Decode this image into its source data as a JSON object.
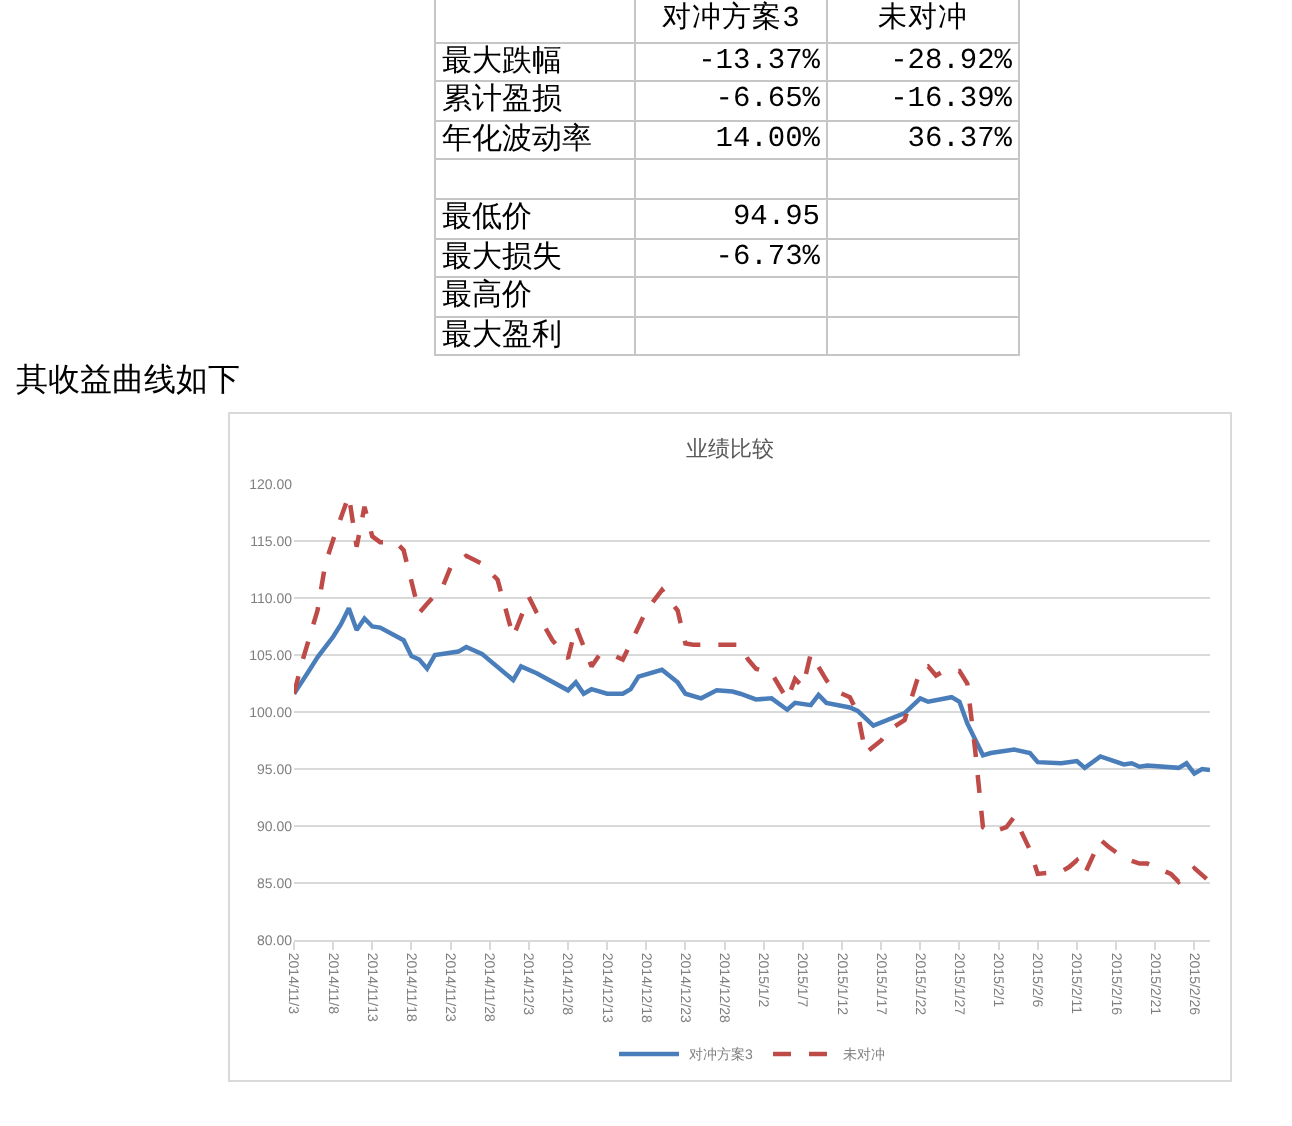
{
  "chart_data": [
    {
      "type": "other",
      "categories": [
        "最大跌幅",
        "累计盈损",
        "年化波动率",
        null,
        "最低价",
        "最大损失",
        "最高价",
        "最大盈利"
      ],
      "series": [
        {
          "name": "对冲方案3",
          "values": [
            -13.37,
            -6.65,
            14.0,
            null,
            94.95,
            -6.73,
            null,
            null
          ],
          "value_labels": [
            "-13.37%",
            "-6.65%",
            "14.00%",
            null,
            "94.95",
            "-6.73%",
            null,
            null
          ]
        },
        {
          "name": "未对冲",
          "values": [
            -28.92,
            -16.39,
            36.37,
            null,
            null,
            null,
            null,
            null
          ],
          "value_labels": [
            "-28.92%",
            "-16.39%",
            "36.37%",
            null,
            null,
            null,
            null,
            null
          ]
        }
      ]
    },
    {
      "type": "line",
      "title": "业绩比较",
      "annotations": [
        "其收益曲线如下"
      ],
      "series": [
        {
          "name": "对冲方案3",
          "color": "#4a7ebb",
          "line_style": "solid",
          "x": [
            "2014-11-03",
            "2014-11-05",
            "2014-11-06",
            "2014-11-08",
            "2014-11-09",
            "2014-11-10",
            "2014-11-11",
            "2014-11-12",
            "2014-11-13",
            "2014-11-14",
            "2014-11-17",
            "2014-11-18",
            "2014-11-19",
            "2014-11-20",
            "2014-11-21",
            "2014-11-24",
            "2014-11-25",
            "2014-11-27",
            "2014-12-01",
            "2014-12-02",
            "2014-12-04",
            "2014-12-08",
            "2014-12-09",
            "2014-12-10",
            "2014-12-11",
            "2014-12-13",
            "2014-12-15",
            "2014-12-16",
            "2014-12-17",
            "2014-12-20",
            "2014-12-22",
            "2014-12-23",
            "2014-12-25",
            "2014-12-27",
            "2014-12-29",
            "2014-12-30",
            "2015-01-01",
            "2015-01-03",
            "2015-01-05",
            "2015-01-06",
            "2015-01-08",
            "2015-01-09",
            "2015-01-10",
            "2015-01-13",
            "2015-01-14",
            "2015-01-16",
            "2015-01-20",
            "2015-01-22",
            "2015-01-23",
            "2015-01-26",
            "2015-01-27",
            "2015-01-28",
            "2015-01-30",
            "2015-01-31",
            "2015-02-03",
            "2015-02-05",
            "2015-02-06",
            "2015-02-09",
            "2015-02-11",
            "2015-02-12",
            "2015-02-14",
            "2015-02-17",
            "2015-02-18",
            "2015-02-19",
            "2015-02-20",
            "2015-02-24",
            "2015-02-25",
            "2015-02-26",
            "2015-02-27",
            "2015-02-28"
          ],
          "values": [
            101.6,
            103.7,
            104.8,
            106.6,
            107.7,
            109.1,
            107.2,
            108.2,
            107.5,
            107.4,
            106.3,
            104.9,
            104.6,
            103.8,
            105.0,
            105.3,
            105.7,
            105.1,
            102.8,
            104.0,
            103.4,
            101.9,
            102.6,
            101.6,
            102.0,
            101.6,
            101.6,
            102.0,
            103.1,
            103.7,
            102.6,
            101.6,
            101.2,
            101.9,
            101.8,
            101.6,
            101.1,
            101.2,
            100.2,
            100.8,
            100.6,
            101.5,
            100.8,
            100.4,
            100.1,
            98.8,
            99.9,
            101.2,
            100.9,
            101.3,
            100.9,
            99.0,
            96.2,
            96.4,
            96.7,
            96.4,
            95.6,
            95.5,
            95.7,
            95.1,
            96.1,
            95.4,
            95.5,
            95.2,
            95.3,
            95.1,
            95.5,
            94.6,
            95.0,
            94.9
          ]
        },
        {
          "name": "未对冲",
          "color": "#be4b48",
          "line_style": "dashed",
          "x": [
            "2014-11-03",
            "2014-11-04",
            "2014-11-06",
            "2014-11-07",
            "2014-11-08",
            "2014-11-10",
            "2014-11-11",
            "2014-11-12",
            "2014-11-13",
            "2014-11-14",
            "2014-11-16",
            "2014-11-17",
            "2014-11-19",
            "2014-11-20",
            "2014-11-22",
            "2014-11-23",
            "2014-11-25",
            "2014-11-27",
            "2014-11-29",
            "2014-12-01",
            "2014-12-03",
            "2014-12-04",
            "2014-12-06",
            "2014-12-08",
            "2014-12-09",
            "2014-12-11",
            "2014-12-12",
            "2014-12-14",
            "2014-12-15",
            "2014-12-18",
            "2014-12-20",
            "2014-12-22",
            "2014-12-23",
            "2014-12-24",
            "2014-12-30",
            "2014-12-31",
            "2015-01-01",
            "2015-01-03",
            "2015-01-05",
            "2015-01-06",
            "2015-01-07",
            "2015-01-08",
            "2015-01-10",
            "2015-01-11",
            "2015-01-13",
            "2015-01-14",
            "2015-01-15",
            "2015-01-17",
            "2015-01-18",
            "2015-01-20",
            "2015-01-22",
            "2015-01-23",
            "2015-01-24",
            "2015-01-25",
            "2015-01-27",
            "2015-01-28",
            "2015-01-29",
            "2015-01-30",
            "2015-01-31",
            "2015-02-02",
            "2015-02-03",
            "2015-02-05",
            "2015-02-06",
            "2015-02-09",
            "2015-02-10",
            "2015-02-11",
            "2015-02-12",
            "2015-02-14",
            "2015-02-15",
            "2015-02-17",
            "2015-02-19",
            "2015-02-20",
            "2015-02-23",
            "2015-02-24",
            "2015-02-26",
            "2015-02-28"
          ],
          "values": [
            101.6,
            104.3,
            108.9,
            113.0,
            115.1,
            119.0,
            114.5,
            118.0,
            115.4,
            114.9,
            114.9,
            114.2,
            108.7,
            109.5,
            111.0,
            112.7,
            113.7,
            113.0,
            111.6,
            106.6,
            110.1,
            108.7,
            106.3,
            104.7,
            107.5,
            104.0,
            105.0,
            104.9,
            104.6,
            108.9,
            110.7,
            108.9,
            106.0,
            105.9,
            105.9,
            104.6,
            103.8,
            103.4,
            101.1,
            102.9,
            102.2,
            105.1,
            102.8,
            101.9,
            101.3,
            99.9,
            96.4,
            97.5,
            98.4,
            99.3,
            103.7,
            104.0,
            103.2,
            103.6,
            103.6,
            102.5,
            96.7,
            89.9,
            89.4,
            89.9,
            90.8,
            87.9,
            85.8,
            86.0,
            86.4,
            87.0,
            85.8,
            88.8,
            88.2,
            87.2,
            86.7,
            86.7,
            85.8,
            85.1,
            86.3,
            85.1
          ]
        }
      ],
      "xlim": [
        "2014-11-03",
        "2015-02-28"
      ],
      "xticks": [
        {
          "value": "2014-11-03",
          "label": "2014/11/3"
        },
        {
          "value": "2014-11-08",
          "label": "2014/11/8"
        },
        {
          "value": "2014-11-13",
          "label": "2014/11/13"
        },
        {
          "value": "2014-11-18",
          "label": "2014/11/18"
        },
        {
          "value": "2014-11-23",
          "label": "2014/11/23"
        },
        {
          "value": "2014-11-28",
          "label": "2014/11/28"
        },
        {
          "value": "2014-12-03",
          "label": "2014/12/3"
        },
        {
          "value": "2014-12-08",
          "label": "2014/12/8"
        },
        {
          "value": "2014-12-13",
          "label": "2014/12/13"
        },
        {
          "value": "2014-12-18",
          "label": "2014/12/18"
        },
        {
          "value": "2014-12-23",
          "label": "2014/12/23"
        },
        {
          "value": "2014-12-28",
          "label": "2014/12/28"
        },
        {
          "value": "2015-01-02",
          "label": "2015/1/2"
        },
        {
          "value": "2015-01-07",
          "label": "2015/1/7"
        },
        {
          "value": "2015-01-12",
          "label": "2015/1/12"
        },
        {
          "value": "2015-01-17",
          "label": "2015/1/17"
        },
        {
          "value": "2015-01-22",
          "label": "2015/1/22"
        },
        {
          "value": "2015-01-27",
          "label": "2015/1/27"
        },
        {
          "value": "2015-02-01",
          "label": "2015/2/1"
        },
        {
          "value": "2015-02-06",
          "label": "2015/2/6"
        },
        {
          "value": "2015-02-11",
          "label": "2015/2/11"
        },
        {
          "value": "2015-02-16",
          "label": "2015/2/16"
        },
        {
          "value": "2015-02-21",
          "label": "2015/2/21"
        },
        {
          "value": "2015-02-26",
          "label": "2015/2/26"
        }
      ],
      "ylim": [
        80,
        120
      ],
      "yticks": [
        {
          "value": 80,
          "label": "80.00"
        },
        {
          "value": 85,
          "label": "85.00"
        },
        {
          "value": 90,
          "label": "90.00"
        },
        {
          "value": 95,
          "label": "95.00"
        },
        {
          "value": 100,
          "label": "100.00"
        },
        {
          "value": 105,
          "label": "105.00"
        },
        {
          "value": 110,
          "label": "110.00"
        },
        {
          "value": 115,
          "label": "115.00"
        },
        {
          "value": 120,
          "label": "120.00"
        }
      ],
      "grid": "y",
      "legend": "bottom"
    }
  ]
}
